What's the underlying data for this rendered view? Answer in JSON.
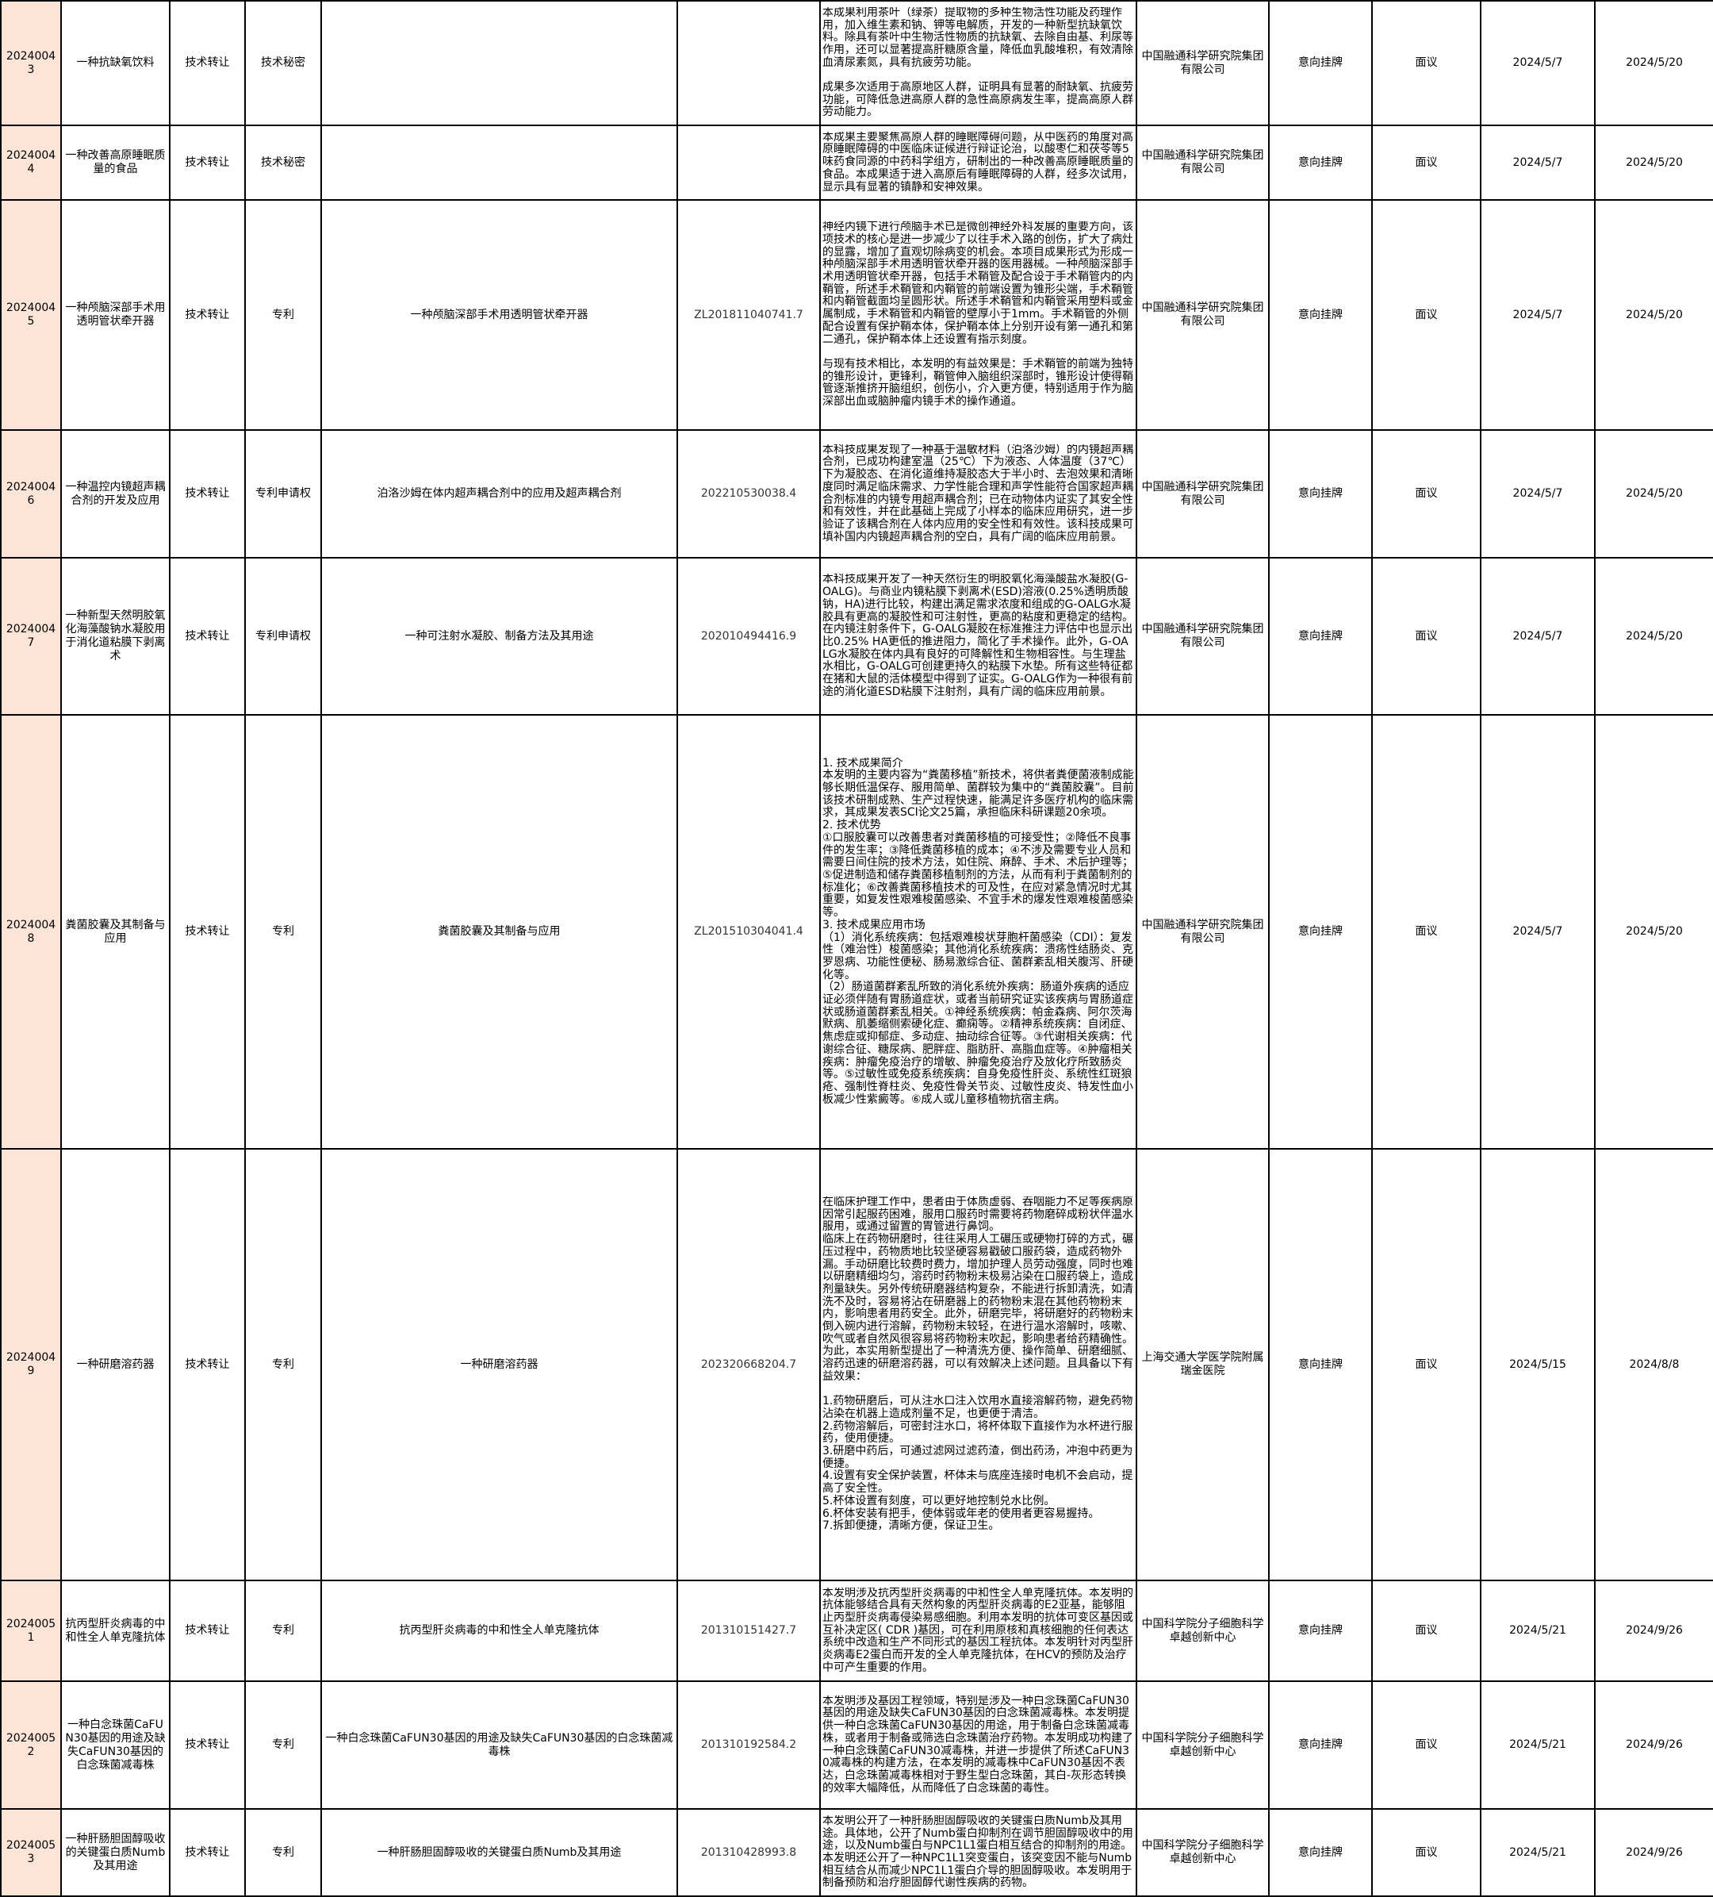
{
  "rows": [
    {
      "id": "20240043",
      "name": "一种抗缺氧饮料",
      "mode": "技术转让",
      "type": "技术秘密",
      "patent_name": "",
      "patent_no": "",
      "desc": "本成果利用茶叶（绿茶）提取物的多种生物活性功能及药理作用，加入维生素和钠、钾等电解质，开发的一种新型抗缺氧饮料。除具有茶叶中生物活性物质的抗缺氧、去除自由基、利尿等作用，还可以显著提高肝糖原含量，降低血乳酸堆积，有效清除血清尿素氮，具有抗疲劳功能。\n\n成果多次适用于高原地区人群，证明具有显著的耐缺氧、抗疲劳功能，可降低急进高原人群的急性高原病发生率，提高高原人群劳动能力。",
      "org": "中国融通科学研究院集团有限公司",
      "trade": "意向挂牌",
      "price": "面议",
      "start": "2024/5/7",
      "end": "2024/5/20"
    },
    {
      "id": "20240044",
      "name": "一种改善高原睡眠质量的食品",
      "mode": "技术转让",
      "type": "技术秘密",
      "patent_name": "",
      "patent_no": "",
      "desc": "本成果主要聚焦高原人群的睡眠障碍问题，从中医药的角度对高原睡眠障碍的中医临床证候进行辩证论治，以酸枣仁和茯苓等5味药食同源的中药科学组方，研制出的一种改善高原睡眠质量的食品。本成果适于进入高原后有睡眠障碍的人群，经多次试用，显示具有显著的镇静和安神效果。",
      "org": "中国融通科学研究院集团有限公司",
      "trade": "意向挂牌",
      "price": "面议",
      "start": "2024/5/7",
      "end": "2024/5/20"
    },
    {
      "id": "20240045",
      "name": "一种颅脑深部手术用透明管状牵开器",
      "mode": "技术转让",
      "type": "专利",
      "patent_name": "一种颅脑深部手术用透明管状牵开器",
      "patent_no": "ZL201811040741.7",
      "desc": "神经内镜下进行颅脑手术已是微创神经外科发展的重要方向，该项技术的核心是进一步减少了以往手术入路的创伤，扩大了病灶的显露，增加了直观切除病变的机会。本项目成果形式为形成一种颅脑深部手术用透明管状牵开器的医用器械。一种颅脑深部手术用透明管状牵开器，包括手术鞘管及配合设于手术鞘管内的内鞘管，所述手术鞘管和内鞘管的前端设置为锥形尖端，手术鞘管和内鞘管截面均呈圆形状。所述手术鞘管和内鞘管采用塑料或金属制成，手术鞘管和内鞘管的壁厚小于1mm。手术鞘管的外侧配合设置有保护鞘本体，保护鞘本体上分别开设有第一通孔和第二通孔，保护鞘本体上还设置有指示刻度。\n\n与现有技术相比，本发明的有益效果是：手术鞘管的前端为独特的锥形设计，更锋利，鞘管伸入脑组织深部时，锥形设计使得鞘管逐渐推挤开脑组织，创伤小，介入更方便，特别适用于作为脑深部出血或脑肿瘤内镜手术的操作通道。",
      "org": "中国融通科学研究院集团有限公司",
      "trade": "意向挂牌",
      "price": "面议",
      "start": "2024/5/7",
      "end": "2024/5/20"
    },
    {
      "id": "20240046",
      "name": "一种温控内镜超声耦合剂的开发及应用",
      "mode": "技术转让",
      "type": "专利申请权",
      "patent_name": "泊洛沙姆在体内超声耦合剂中的应用及超声耦合剂",
      "patent_no": "202210530038.4",
      "desc": "本科技成果发现了一种基于温敏材料（泊洛沙姆）的内镜超声耦合剂，已成功构建室温（25℃）下为液态、人体温度（37℃）下为凝胶态、在消化道维持凝胶态大于半小时、去泡效果和清晰度同时满足临床需求、力学性能合理和声学性能符合国家超声耦合剂标准的内镜专用超声耦合剂；已在动物体内证实了其安全性和有效性，并在此基础上完成了小样本的临床应用研究，进一步验证了该耦合剂在人体内应用的安全性和有效性。该科技成果可填补国内内镜超声耦合剂的空白，具有广阔的临床应用前景。",
      "org": "中国融通科学研究院集团有限公司",
      "trade": "意向挂牌",
      "price": "面议",
      "start": "2024/5/7",
      "end": "2024/5/20"
    },
    {
      "id": "20240047",
      "name": "一种新型天然明胶氧化海藻酸钠水凝胶用于消化道粘膜下剥离术",
      "mode": "技术转让",
      "type": "专利申请权",
      "patent_name": "一种可注射水凝胶、制备方法及其用途",
      "patent_no": "202010494416.9",
      "desc": "本科技成果开发了一种天然衍生的明胶氧化海藻酸盐水凝胶(G-OALG)。与商业内镜粘膜下剥离术(ESD)溶液(0.25%透明质酸钠，HA)进行比较，构建出满足需求浓度和组成的G-OALG水凝胶具有更高的凝胶性和可注射性，更高的粘度和更稳定的结构。在内镜注射条件下，G-OALG凝胶在标准推注力评估中也显示出比0.25% HA更低的推进阻力，简化了手术操作。此外，G-OALG水凝胶在体内具有良好的可降解性和生物相容性。与生理盐水相比，G-OALG可创建更持久的粘膜下水垫。所有这些特征都在猪和大鼠的活体模型中得到了证实。G-OALG作为一种很有前途的消化道ESD粘膜下注射剂，具有广阔的临床应用前景。",
      "org": "中国融通科学研究院集团有限公司",
      "trade": "意向挂牌",
      "price": "面议",
      "start": "2024/5/7",
      "end": "2024/5/20"
    },
    {
      "id": "20240048",
      "name": "粪菌胶囊及其制备与应用",
      "mode": "技术转让",
      "type": "专利",
      "patent_name": "粪菌胶囊及其制备与应用",
      "patent_no": "ZL201510304041.4",
      "desc": "1. 技术成果简介\n本发明的主要内容为“粪菌移植”新技术，将供者粪便菌液制成能够长期低温保存、服用简单、菌群较为集中的“粪菌胶囊”。目前该技术研制成熟、生产过程快速，能满足许多医疗机构的临床需求，其成果发表SCI论文25篇，承担临床科研课题20余项。\n2. 技术优势\n①口服胶囊可以改善患者对粪菌移植的可接受性；②降低不良事件的发生率；③降低粪菌移植的成本；④不涉及需要专业人员和需要日间住院的技术方法，如住院、麻醉、手术、术后护理等；⑤促进制造和储存粪菌移植制剂的方法，从而有利于粪菌制剂的标准化；⑥改善粪菌移植技术的可及性，在应对紧急情况时尤其重要，如复发性艰难梭菌感染、不宜手术的爆发性艰难梭菌感染等。\n3. 技术成果应用市场\n（1）消化系统疾病：包括艰难梭状芽胞杆菌感染（CDI）：复发性（难治性）梭菌感染；其他消化系统疾病：溃疡性结肠炎、克罗恩病、功能性便秘、肠易激综合征、菌群紊乱相关腹泻、肝硬化等。\n（2）肠道菌群紊乱所致的消化系统外疾病：肠道外疾病的适应证必须伴随有胃肠道症状，或者当前研究证实该疾病与胃肠道症状或肠道菌群紊乱相关。①神经系统疾病：帕金森病、阿尔茨海默病、肌萎缩侧索硬化症、癫痫等。②精神系统疾病：自闭症、焦虑症或抑郁症、多动症、抽动综合征等。③代谢相关疾病：代谢综合征、糖尿病、肥胖症、脂肪肝、高脂血症等。④肿瘤相关疾病：肿瘤免疫治疗的增敏、肿瘤免疫治疗及放化疗所致肠炎等。⑤过敏性或免疫系统疾病：自身免疫性肝炎、系统性红斑狼疮、强制性脊柱炎、免疫性骨关节炎、过敏性皮炎、特发性血小板减少性紫癜等。⑥成人或儿童移植物抗宿主病。",
      "org": "中国融通科学研究院集团有限公司",
      "trade": "意向挂牌",
      "price": "面议",
      "start": "2024/5/7",
      "end": "2024/5/20"
    },
    {
      "id": "20240049",
      "name": "一种研磨溶药器",
      "mode": "技术转让",
      "type": "专利",
      "patent_name": "一种研磨溶药器",
      "patent_no": "202320668204.7",
      "desc": "在临床护理工作中，患者由于体质虚弱、吞咽能力不足等疾病原因常引起服药困难，服用口服药时需要将药物磨碎成粉状伴温水服用，或通过留置的胃管进行鼻饲。\n临床上在药物研磨时，往往采用人工碾压或硬物打碎的方式，碾压过程中，药物质地比较坚硬容易戳破口服药袋，造成药物外漏。手动研磨比较费时费力，增加护理人员劳动强度，同时也难以研磨精细均匀，溶药时药物粉末极易沾染在口服药袋上，造成剂量缺失。另外传统研磨器结构复杂，不能进行拆卸清洗，如清洗不及时，容易将沾在研磨器上的药物粉末混在其他药物粉末内，影响患者用药安全。此外，研磨完毕，将研磨好的药物粉末倒入碗内进行溶解，药物粉末较轻，在进行温水溶解时，咳嗽、吹气或者自然风很容易将药物粉末吹起，影响患者给药精确性。\n为此，本实用新型提出了一种清洗方便、操作简单、研磨细腻、溶药迅速的研磨溶药器，可以有效解决上述问题。且具备以下有益效果：\n\n1.药物研磨后，可从注水口注入饮用水直接溶解药物，避免药物沾染在机器上造成剂量不足，也更便于清洁。\n2.药物溶解后，可密封注水口，将杯体取下直接作为水杯进行服药，使用便捷。\n3.研磨中药后，可通过滤网过滤药渣，倒出药汤，冲泡中药更为便捷。\n4.设置有安全保护装置，杯体未与底座连接时电机不会启动，提高了安全性。\n5.杯体设置有刻度，可以更好地控制兑水比例。\n6.杯体安装有把手，使体弱或年老的使用者更容易握持。\n7.拆卸便捷，清晰方便，保证卫生。",
      "org": "上海交通大学医学院附属瑞金医院",
      "trade": "意向挂牌",
      "price": "面议",
      "start": "2024/5/15",
      "end": "2024/8/8"
    },
    {
      "id": "20240051",
      "name": "抗丙型肝炎病毒的中和性全人单克隆抗体",
      "mode": "技术转让",
      "type": "专利",
      "patent_name": "抗丙型肝炎病毒的中和性全人单克隆抗体",
      "patent_no": "201310151427.7",
      "desc": "本发明涉及抗丙型肝炎病毒的中和性全人单克隆抗体。本发明的抗体能够结合具有天然构象的丙型肝炎病毒的E2亚基，能够阻止丙型肝炎病毒侵染易感细胞。利用本发明的抗体可变区基因或互补决定区( CDR )基因，可在利用原核和真核细胞的任何表达系统中改造和生产不同形式的基因工程抗体。本发明针对丙型肝炎病毒E2蛋白而开发的全人单克隆抗体，在HCV的预防及治疗中可产生重要的作用。",
      "org": "中国科学院分子细胞科学卓越创新中心",
      "trade": "意向挂牌",
      "price": "面议",
      "start": "2024/5/21",
      "end": "2024/9/26"
    },
    {
      "id": "20240052",
      "name": "一种白念珠菌CaFUN30基因的用途及缺失CaFUN30基因的白念珠菌减毒株",
      "mode": "技术转让",
      "type": "专利",
      "patent_name": "一种白念珠菌CaFUN30基因的用途及缺失CaFUN30基因的白念珠菌减毒株",
      "patent_no": "201310192584.2",
      "desc": "本发明涉及基因工程领域，特别是涉及一种白念珠菌CaFUN30基因的用途及缺失CaFUN30基因的白念珠菌减毒株。本发明提供一种白念珠菌CaFUN30基因的用途，用于制备白念珠菌减毒株，或者用于制备或筛选白念珠菌治疗药物。本发明成功构建了一种白念珠菌CaFUN30减毒株，并进一步提供了所述CaFUN30减毒株的构建方法，在本发明的减毒株中CaFUN30基因不表达，白念珠菌减毒株相对于野生型白念珠菌，其白-灰形态转换的效率大幅降低，从而降低了白念珠菌的毒性。",
      "org": "中国科学院分子细胞科学卓越创新中心",
      "trade": "意向挂牌",
      "price": "面议",
      "start": "2024/5/21",
      "end": "2024/9/26"
    },
    {
      "id": "20240053",
      "name": "一种肝肠胆固醇吸收的关键蛋白质Numb及其用途",
      "mode": "技术转让",
      "type": "专利",
      "patent_name": "一种肝肠胆固醇吸收的关键蛋白质Numb及其用途",
      "patent_no": "201310428993.8",
      "desc": "本发明公开了一种肝肠胆固醇吸收的关键蛋白质Numb及其用途。具体地，公开了Numb蛋白抑制剂在调节胆固醇吸收中的用途，以及Numb蛋白与NPC1L1蛋白相互结合的抑制剂的用途。本发明还公开了一种NPC1L1突变蛋白，该突变因不能与Numb相互结合从而减少NPC1L1蛋白介导的胆固醇吸收。本发明用于制备预防和治疗胆固醇代谢性疾病的药物。",
      "org": "中国科学院分子细胞科学卓越创新中心",
      "trade": "意向挂牌",
      "price": "面议",
      "start": "2024/5/21",
      "end": "2024/9/26"
    }
  ],
  "colors": {
    "id_column_bg": "#fce4d6",
    "grid": "#000000"
  }
}
